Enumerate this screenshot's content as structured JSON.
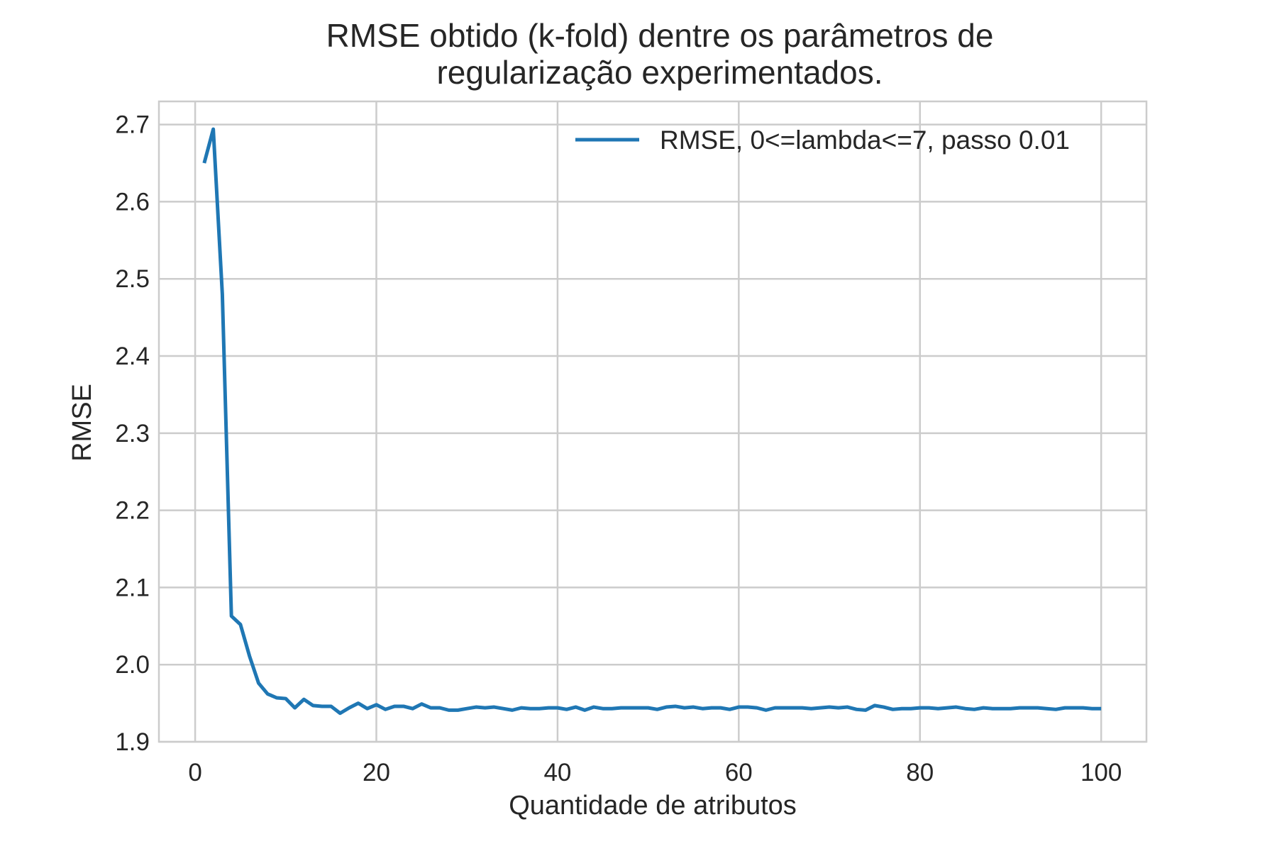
{
  "chart_data": {
    "type": "line",
    "title_lines": [
      "RMSE obtido (k-fold) dentre os parâmetros de",
      "regularização experimentados."
    ],
    "xlabel": "Quantidade de atributos",
    "ylabel": "RMSE",
    "xlim": [
      -4,
      105
    ],
    "ylim": [
      1.9,
      2.73
    ],
    "xticks": [
      0,
      20,
      40,
      60,
      80,
      100
    ],
    "yticks": [
      1.9,
      2.0,
      2.1,
      2.2,
      2.3,
      2.4,
      2.5,
      2.6,
      2.7
    ],
    "xtick_labels": [
      "0",
      "20",
      "40",
      "60",
      "80",
      "100"
    ],
    "ytick_labels": [
      "1.9",
      "2.0",
      "2.1",
      "2.2",
      "2.3",
      "2.4",
      "2.5",
      "2.6",
      "2.7"
    ],
    "grid": true,
    "legend_position": "upper right",
    "series": [
      {
        "name": "RMSE, 0<=lambda<=7, passo 0.01",
        "color": "#1f77b4",
        "x": [
          1,
          2,
          3,
          4,
          5,
          6,
          7,
          8,
          9,
          10,
          11,
          12,
          13,
          14,
          15,
          16,
          17,
          18,
          19,
          20,
          21,
          22,
          23,
          24,
          25,
          26,
          27,
          28,
          29,
          30,
          31,
          32,
          33,
          34,
          35,
          36,
          37,
          38,
          39,
          40,
          41,
          42,
          43,
          44,
          45,
          46,
          47,
          48,
          49,
          50,
          51,
          52,
          53,
          54,
          55,
          56,
          57,
          58,
          59,
          60,
          61,
          62,
          63,
          64,
          65,
          66,
          67,
          68,
          69,
          70,
          71,
          72,
          73,
          74,
          75,
          76,
          77,
          78,
          79,
          80,
          81,
          82,
          83,
          84,
          85,
          86,
          87,
          88,
          89,
          90,
          91,
          92,
          93,
          94,
          95,
          96,
          97,
          98,
          99,
          100
        ],
        "y": [
          2.65,
          2.694,
          2.48,
          2.063,
          2.052,
          2.011,
          1.976,
          1.962,
          1.957,
          1.956,
          1.944,
          1.955,
          1.947,
          1.946,
          1.946,
          1.937,
          1.944,
          1.95,
          1.943,
          1.948,
          1.942,
          1.946,
          1.946,
          1.943,
          1.949,
          1.944,
          1.944,
          1.941,
          1.941,
          1.943,
          1.945,
          1.944,
          1.945,
          1.943,
          1.941,
          1.944,
          1.943,
          1.943,
          1.944,
          1.944,
          1.942,
          1.945,
          1.941,
          1.945,
          1.943,
          1.943,
          1.944,
          1.944,
          1.944,
          1.944,
          1.942,
          1.945,
          1.946,
          1.944,
          1.945,
          1.943,
          1.944,
          1.944,
          1.942,
          1.945,
          1.945,
          1.944,
          1.941,
          1.944,
          1.944,
          1.944,
          1.944,
          1.943,
          1.944,
          1.945,
          1.944,
          1.945,
          1.942,
          1.941,
          1.947,
          1.945,
          1.942,
          1.943,
          1.943,
          1.944,
          1.944,
          1.943,
          1.944,
          1.945,
          1.943,
          1.942,
          1.944,
          1.943,
          1.943,
          1.943,
          1.944,
          1.944,
          1.944,
          1.943,
          1.942,
          1.944,
          1.944,
          1.944,
          1.943,
          1.943
        ]
      }
    ]
  }
}
